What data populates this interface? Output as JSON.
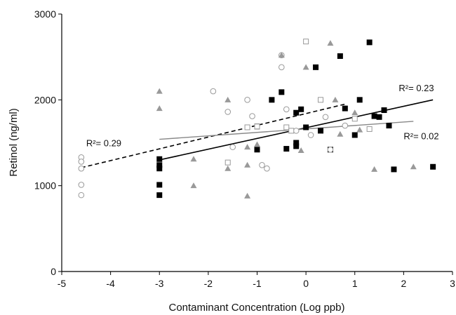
{
  "chart_data": {
    "type": "scatter",
    "title": "",
    "xlabel": "Contaminant Concentration (Log ppb)",
    "ylabel": "Retinol (ng/ml)",
    "xlim": [
      -5,
      3
    ],
    "ylim": [
      0,
      3000
    ],
    "xticks": [
      -5,
      -4,
      -3,
      -2,
      -1,
      0,
      1,
      2,
      3
    ],
    "xtick_labels": [
      "-5",
      "-4",
      "-3",
      "-2",
      "-1",
      "0",
      "1",
      "2",
      "3"
    ],
    "yticks": [
      0,
      1000,
      2000,
      3000
    ],
    "ytick_labels": [
      "0",
      "1000",
      "2000",
      "3000"
    ],
    "grid": false,
    "legend": "none",
    "series": [
      {
        "marker": "filled-square",
        "color": "#000000",
        "points": [
          [
            -3.0,
            1310
          ],
          [
            -3.0,
            1240
          ],
          [
            -3.0,
            1200
          ],
          [
            -3.0,
            1010
          ],
          [
            -3.0,
            890
          ],
          [
            -1.0,
            1420
          ],
          [
            -1.0,
            1690
          ],
          [
            -0.7,
            2000
          ],
          [
            -0.5,
            2090
          ],
          [
            -0.4,
            1430
          ],
          [
            -0.2,
            1500
          ],
          [
            -0.2,
            1460
          ],
          [
            -0.2,
            1850
          ],
          [
            -0.1,
            1890
          ],
          [
            0.0,
            1680
          ],
          [
            0.2,
            2380
          ],
          [
            0.3,
            1640
          ],
          [
            0.5,
            1420
          ],
          [
            0.7,
            2510
          ],
          [
            0.8,
            1900
          ],
          [
            1.0,
            1590
          ],
          [
            1.1,
            2000
          ],
          [
            1.3,
            2670
          ],
          [
            1.4,
            1810
          ],
          [
            1.5,
            1800
          ],
          [
            1.6,
            1880
          ],
          [
            1.7,
            1700
          ],
          [
            1.8,
            1190
          ],
          [
            2.6,
            1220
          ]
        ]
      },
      {
        "marker": "open-circle",
        "color": "#999999",
        "points": [
          [
            -4.6,
            1330
          ],
          [
            -4.6,
            1280
          ],
          [
            -4.6,
            1200
          ],
          [
            -4.6,
            1010
          ],
          [
            -4.6,
            890
          ],
          [
            -1.9,
            2100
          ],
          [
            -1.6,
            1860
          ],
          [
            -1.5,
            1450
          ],
          [
            -1.2,
            2000
          ],
          [
            -1.1,
            1810
          ],
          [
            -0.9,
            1240
          ],
          [
            -0.8,
            1200
          ],
          [
            -0.5,
            2520
          ],
          [
            -0.5,
            2380
          ],
          [
            -0.4,
            1890
          ],
          [
            -0.2,
            1640
          ],
          [
            0.1,
            1590
          ],
          [
            0.4,
            1800
          ],
          [
            0.5,
            1420
          ],
          [
            0.8,
            1700
          ]
        ]
      },
      {
        "marker": "open-square",
        "color": "#999999",
        "points": [
          [
            -1.6,
            1270
          ],
          [
            -1.2,
            1680
          ],
          [
            -1.0,
            1690
          ],
          [
            -0.4,
            1680
          ],
          [
            -0.3,
            1640
          ],
          [
            0.0,
            2680
          ],
          [
            0.3,
            2000
          ],
          [
            1.0,
            1780
          ],
          [
            1.3,
            1660
          ]
        ]
      },
      {
        "marker": "filled-triangle",
        "color": "#999999",
        "points": [
          [
            -3.0,
            2100
          ],
          [
            -3.0,
            1900
          ],
          [
            -2.3,
            1000
          ],
          [
            -2.3,
            1310
          ],
          [
            -1.6,
            2000
          ],
          [
            -1.6,
            1200
          ],
          [
            -1.2,
            1240
          ],
          [
            -1.2,
            880
          ],
          [
            -1.2,
            1450
          ],
          [
            -1.0,
            1480
          ],
          [
            -0.5,
            2520
          ],
          [
            -0.1,
            1410
          ],
          [
            0.0,
            2380
          ],
          [
            0.5,
            2660
          ],
          [
            0.6,
            2000
          ],
          [
            0.7,
            1600
          ],
          [
            1.0,
            1850
          ],
          [
            1.1,
            1650
          ],
          [
            1.4,
            1190
          ],
          [
            2.2,
            1220
          ]
        ]
      }
    ],
    "trend_lines": [
      {
        "style": "dashed",
        "color": "#000000",
        "x": [
          -4.6,
          0.8
        ],
        "y": [
          1210,
          1950
        ]
      },
      {
        "style": "solid",
        "color": "#000000",
        "x": [
          -3.0,
          2.6
        ],
        "y": [
          1300,
          2000
        ]
      },
      {
        "style": "solid",
        "color": "#888888",
        "x": [
          -3.0,
          2.2
        ],
        "y": [
          1540,
          1750
        ]
      }
    ],
    "annotations": [
      {
        "text": "R²= 0.29",
        "x": -4.5,
        "y": 1460
      },
      {
        "text": "R²= 0.23",
        "x": 1.9,
        "y": 2100
      },
      {
        "text": "R²= 0.02",
        "x": 2.0,
        "y": 1540
      }
    ]
  }
}
